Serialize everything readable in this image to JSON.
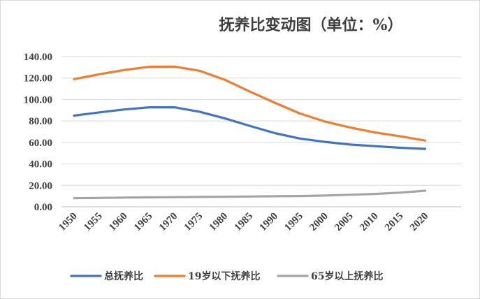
{
  "chart_data": {
    "type": "line",
    "title": "抚养比变动图（单位：%）",
    "xlabel": "",
    "ylabel": "",
    "categories": [
      "1950",
      "1955",
      "1960",
      "1965",
      "1970",
      "1975",
      "1980",
      "1985",
      "1990",
      "1995",
      "2000",
      "2005",
      "2010",
      "2015",
      "2020"
    ],
    "ylim": [
      0,
      140
    ],
    "yticks": [
      "0.00",
      "20.00",
      "40.00",
      "60.00",
      "80.00",
      "100.00",
      "120.00",
      "140.00"
    ],
    "grid": true,
    "legend_position": "bottom",
    "series": [
      {
        "name": "总抚养比",
        "color": "#4472C4",
        "values": [
          85.0,
          88.0,
          90.7,
          92.7,
          92.7,
          88.6,
          82.5,
          75.5,
          68.7,
          63.6,
          60.5,
          58.0,
          56.5,
          55.0,
          54.0
        ]
      },
      {
        "name": "19岁以下抚养比",
        "color": "#ED7D31",
        "values": [
          119.0,
          123.5,
          127.5,
          130.5,
          130.7,
          126.8,
          118.5,
          107.5,
          97.0,
          87.0,
          79.5,
          74.0,
          69.3,
          65.7,
          61.7
        ]
      },
      {
        "name": "65岁以上抚养比",
        "color": "#A5A5A5",
        "values": [
          8.0,
          8.3,
          8.6,
          8.8,
          9.0,
          9.2,
          9.4,
          9.6,
          9.8,
          10.0,
          10.5,
          11.2,
          12.0,
          13.2,
          15.0
        ]
      }
    ]
  }
}
